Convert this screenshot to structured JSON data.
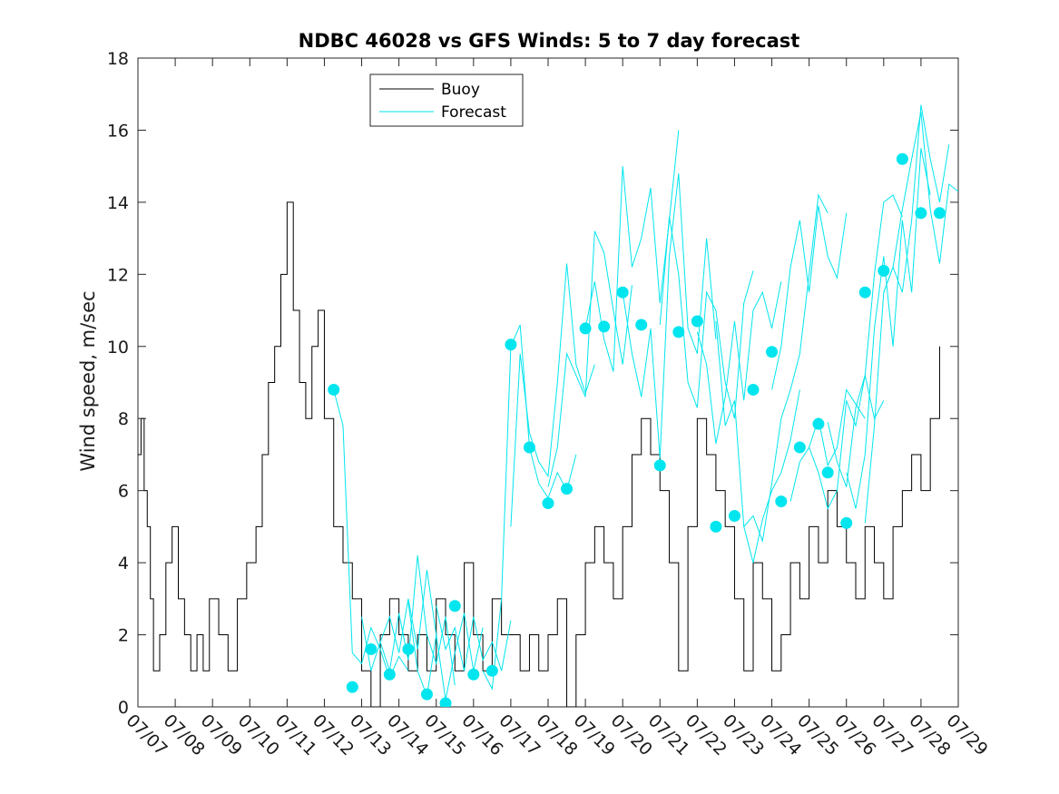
{
  "colors": {
    "buoy": "#000000",
    "forecast": "#00e5ee",
    "axis": "#262626",
    "background": "#ffffff"
  },
  "chart_data": {
    "type": "line",
    "title": "NDBC 46028 vs GFS Winds: 5 to 7 day forecast",
    "xlabel": "",
    "ylabel": "Wind speed, m/sec",
    "xlim": [
      "07/07",
      "07/29"
    ],
    "ylim": [
      0,
      18
    ],
    "x_ticks": [
      "07/07",
      "07/08",
      "07/09",
      "07/10",
      "07/11",
      "07/12",
      "07/13",
      "07/14",
      "07/15",
      "07/16",
      "07/17",
      "07/18",
      "07/19",
      "07/20",
      "07/21",
      "07/22",
      "07/23",
      "07/24",
      "07/25",
      "07/26",
      "07/27",
      "07/28",
      "07/29"
    ],
    "y_ticks": [
      "0",
      "2",
      "4",
      "6",
      "8",
      "10",
      "12",
      "14",
      "16",
      "18"
    ],
    "grid": false,
    "legend": {
      "placement": "top-center",
      "entries": [
        "Buoy",
        "Forecast"
      ]
    },
    "series": [
      {
        "name": "Buoy",
        "x": [
          "07/07 00:00",
          "07/07 02:00",
          "07/07 04:00",
          "07/07 06:00",
          "07/07 08:00",
          "07/07 10:00",
          "07/07 14:00",
          "07/07 18:00",
          "07/07 22:00",
          "07/08 02:00",
          "07/08 06:00",
          "07/08 10:00",
          "07/08 14:00",
          "07/08 18:00",
          "07/08 22:00",
          "07/09 04:00",
          "07/09 10:00",
          "07/09 16:00",
          "07/09 22:00",
          "07/10 04:00",
          "07/10 08:00",
          "07/10 12:00",
          "07/10 16:00",
          "07/10 20:00",
          "07/11 00:00",
          "07/11 04:00",
          "07/11 08:00",
          "07/11 12:00",
          "07/11 16:00",
          "07/11 20:00",
          "07/12 00:00",
          "07/12 06:00",
          "07/12 12:00",
          "07/12 18:00",
          "07/13 00:00",
          "07/13 06:00",
          "07/13 12:00",
          "07/13 18:00",
          "07/14 00:00",
          "07/14 06:00",
          "07/14 12:00",
          "07/14 18:00",
          "07/15 00:00",
          "07/15 06:00",
          "07/15 12:00",
          "07/15 18:00",
          "07/16 00:00",
          "07/16 06:00",
          "07/16 12:00",
          "07/16 18:00",
          "07/17 00:00",
          "07/17 06:00",
          "07/17 12:00",
          "07/17 18:00",
          "07/18 00:00",
          "07/18 06:00",
          "07/18 12:00",
          "07/18 18:00",
          "07/19 00:00",
          "07/19 06:00",
          "07/19 12:00",
          "07/19 18:00",
          "07/20 00:00",
          "07/20 06:00",
          "07/20 12:00",
          "07/20 18:00",
          "07/21 00:00",
          "07/21 06:00",
          "07/21 12:00",
          "07/21 18:00",
          "07/22 00:00",
          "07/22 06:00",
          "07/22 12:00",
          "07/22 18:00",
          "07/23 00:00",
          "07/23 06:00",
          "07/23 12:00",
          "07/23 18:00",
          "07/24 00:00",
          "07/24 06:00",
          "07/24 12:00",
          "07/24 18:00",
          "07/25 00:00",
          "07/25 06:00",
          "07/25 12:00",
          "07/25 18:00",
          "07/26 00:00",
          "07/26 06:00",
          "07/26 12:00",
          "07/26 18:00",
          "07/27 00:00",
          "07/27 06:00",
          "07/27 12:00",
          "07/27 18:00",
          "07/28 00:00",
          "07/28 06:00",
          "07/28 12:00"
        ],
        "y": [
          7,
          8,
          6,
          5,
          3,
          1,
          2,
          4,
          5,
          3,
          2,
          1,
          2,
          1,
          3,
          2,
          1,
          3,
          4,
          5,
          7,
          9,
          10,
          12,
          14,
          11,
          9,
          8,
          10,
          11,
          8,
          5,
          4,
          3,
          1,
          0,
          2,
          3,
          2,
          1,
          2,
          1,
          3,
          2,
          1,
          4,
          2,
          1,
          3,
          2,
          2,
          1,
          2,
          1,
          2,
          3,
          0,
          2,
          4,
          5,
          4,
          3,
          5,
          7,
          8,
          7,
          6,
          4,
          1,
          5,
          8,
          7,
          6,
          5,
          3,
          1,
          4,
          3,
          1,
          2,
          4,
          3,
          5,
          4,
          6,
          5,
          4,
          3,
          5,
          4,
          3,
          5,
          6,
          7,
          6,
          8,
          10
        ]
      }
    ],
    "forecast_runs": [
      {
        "x": [
          "07/12 06:00",
          "07/12 12:00",
          "07/12 18:00",
          "07/13 00:00",
          "07/13 06:00",
          "07/13 12:00",
          "07/13 18:00",
          "07/14 00:00",
          "07/14 06:00"
        ],
        "y": [
          8.8,
          7.8,
          1.5,
          1.2,
          2.2,
          1.6,
          0.8,
          1.4,
          1.0
        ]
      },
      {
        "x": [
          "07/13 00:00",
          "07/13 06:00",
          "07/13 12:00",
          "07/13 18:00",
          "07/14 00:00",
          "07/14 06:00",
          "07/14 12:00",
          "07/14 18:00",
          "07/15 00:00"
        ],
        "y": [
          2.5,
          1.0,
          1.8,
          2.5,
          1.5,
          3.0,
          1.6,
          3.8,
          2.0
        ]
      },
      {
        "x": [
          "07/13 12:00",
          "07/13 18:00",
          "07/14 00:00",
          "07/14 06:00",
          "07/14 12:00",
          "07/14 18:00",
          "07/15 00:00",
          "07/15 06:00",
          "07/15 12:00"
        ],
        "y": [
          1.8,
          1.0,
          2.6,
          1.3,
          4.2,
          2.0,
          1.2,
          2.5,
          0.6
        ]
      },
      {
        "x": [
          "07/14 06:00",
          "07/14 12:00",
          "07/14 18:00",
          "07/15 00:00",
          "07/15 06:00",
          "07/15 12:00",
          "07/15 18:00",
          "07/16 00:00",
          "07/16 06:00"
        ],
        "y": [
          2.9,
          1.0,
          0.3,
          2.0,
          0.2,
          1.5,
          2.6,
          1.0,
          2.2
        ]
      },
      {
        "x": [
          "07/15 00:00",
          "07/15 06:00",
          "07/15 12:00",
          "07/15 18:00",
          "07/16 00:00",
          "07/16 06:00",
          "07/16 12:00",
          "07/16 18:00",
          "07/17 00:00"
        ],
        "y": [
          2.8,
          1.6,
          2.2,
          1.0,
          2.5,
          1.3,
          1.8,
          1.0,
          2.4
        ]
      },
      {
        "x": [
          "07/16 06:00",
          "07/16 12:00",
          "07/16 18:00",
          "07/17 00:00",
          "07/17 06:00",
          "07/17 12:00",
          "07/17 18:00",
          "07/18 00:00",
          "07/18 06:00",
          "07/18 12:00",
          "07/18 18:00"
        ],
        "y": [
          1.0,
          0.5,
          3.0,
          10.0,
          10.6,
          7.2,
          6.2,
          5.8,
          6.5,
          6.0,
          7.0
        ]
      },
      {
        "x": [
          "07/17 00:00",
          "07/17 06:00",
          "07/17 12:00",
          "07/17 18:00",
          "07/18 00:00",
          "07/18 06:00",
          "07/18 12:00",
          "07/18 18:00",
          "07/19 00:00",
          "07/19 06:00"
        ],
        "y": [
          5.0,
          9.8,
          7.6,
          6.8,
          6.4,
          9.0,
          12.3,
          9.5,
          8.7,
          9.5
        ]
      },
      {
        "x": [
          "07/18 00:00",
          "07/18 06:00",
          "07/18 12:00",
          "07/18 18:00",
          "07/19 00:00",
          "07/19 06:00",
          "07/19 12:00",
          "07/19 18:00",
          "07/20 00:00",
          "07/20 06:00"
        ],
        "y": [
          6.1,
          7.2,
          9.8,
          9.2,
          8.6,
          13.2,
          12.6,
          11.0,
          9.5,
          11.7
        ]
      },
      {
        "x": [
          "07/19 00:00",
          "07/19 06:00",
          "07/19 12:00",
          "07/19 18:00",
          "07/20 00:00",
          "07/20 06:00",
          "07/20 12:00",
          "07/20 18:00",
          "07/21 00:00",
          "07/21 06:00",
          "07/21 12:00"
        ],
        "y": [
          10.5,
          11.8,
          10.2,
          9.3,
          15.0,
          12.2,
          13.0,
          14.4,
          11.2,
          13.5,
          16.0
        ]
      },
      {
        "x": [
          "07/20 00:00",
          "07/20 06:00",
          "07/20 12:00",
          "07/20 18:00",
          "07/21 00:00",
          "07/21 06:00",
          "07/21 12:00",
          "07/21 18:00",
          "07/22 00:00",
          "07/22 06:00",
          "07/22 12:00"
        ],
        "y": [
          11.5,
          9.8,
          8.6,
          10.5,
          6.9,
          12.5,
          14.8,
          10.5,
          9.8,
          13.0,
          10.2
        ]
      },
      {
        "x": [
          "07/21 00:00",
          "07/21 06:00",
          "07/21 12:00",
          "07/21 18:00",
          "07/22 00:00",
          "07/22 06:00",
          "07/22 12:00",
          "07/22 18:00",
          "07/23 00:00",
          "07/23 06:00",
          "07/23 12:00"
        ],
        "y": [
          10.6,
          13.6,
          12.0,
          9.0,
          8.3,
          11.5,
          11.0,
          9.0,
          8.0,
          11.2,
          12.1
        ]
      },
      {
        "x": [
          "07/22 00:00",
          "07/22 06:00",
          "07/22 12:00",
          "07/22 18:00",
          "07/23 00:00",
          "07/23 06:00",
          "07/23 12:00",
          "07/23 18:00",
          "07/24 00:00",
          "07/24 06:00"
        ],
        "y": [
          10.4,
          9.5,
          7.3,
          8.6,
          10.7,
          8.5,
          11.0,
          11.5,
          10.5,
          11.8
        ]
      },
      {
        "x": [
          "07/22 12:00",
          "07/22 18:00",
          "07/23 00:00",
          "07/23 06:00",
          "07/23 12:00",
          "07/23 18:00",
          "07/24 00:00",
          "07/24 06:00",
          "07/24 12:00",
          "07/24 18:00"
        ],
        "y": [
          10.7,
          7.8,
          8.5,
          5.0,
          4.0,
          5.2,
          6.0,
          6.5,
          7.4,
          8.8
        ]
      },
      {
        "x": [
          "07/23 06:00",
          "07/23 12:00",
          "07/23 18:00",
          "07/24 00:00",
          "07/24 06:00",
          "07/24 12:00",
          "07/24 18:00",
          "07/25 00:00",
          "07/25 06:00",
          "07/25 12:00"
        ],
        "y": [
          5.0,
          5.3,
          4.6,
          6.2,
          8.0,
          8.8,
          9.8,
          12.0,
          14.2,
          13.7
        ]
      },
      {
        "x": [
          "07/24 00:00",
          "07/24 06:00",
          "07/24 12:00",
          "07/24 18:00",
          "07/25 00:00",
          "07/25 06:00",
          "07/25 12:00",
          "07/25 18:00",
          "07/26 00:00"
        ],
        "y": [
          8.8,
          10.0,
          12.2,
          13.5,
          11.5,
          13.9,
          12.5,
          11.9,
          13.7
        ]
      },
      {
        "x": [
          "07/24 12:00",
          "07/24 18:00",
          "07/25 00:00",
          "07/25 06:00",
          "07/25 12:00",
          "07/25 18:00",
          "07/26 00:00",
          "07/26 06:00",
          "07/26 12:00"
        ],
        "y": [
          5.7,
          6.8,
          7.2,
          8.0,
          6.7,
          7.2,
          8.8,
          8.4,
          8.0
        ]
      },
      {
        "x": [
          "07/25 00:00",
          "07/25 06:00",
          "07/25 12:00",
          "07/25 18:00",
          "07/26 00:00",
          "07/26 06:00",
          "07/26 12:00",
          "07/26 18:00",
          "07/27 00:00"
        ],
        "y": [
          7.2,
          6.5,
          5.5,
          6.0,
          8.5,
          7.8,
          9.2,
          8.0,
          8.5
        ]
      },
      {
        "x": [
          "07/25 12:00",
          "07/25 18:00",
          "07/26 00:00",
          "07/26 06:00",
          "07/26 12:00",
          "07/26 18:00",
          "07/27 00:00",
          "07/27 06:00",
          "07/27 12:00"
        ],
        "y": [
          7.9,
          6.8,
          6.1,
          8.3,
          9.2,
          12.0,
          14.0,
          14.2,
          13.6
        ]
      },
      {
        "x": [
          "07/26 00:00",
          "07/26 06:00",
          "07/26 12:00",
          "07/26 18:00",
          "07/27 00:00",
          "07/27 06:00",
          "07/27 12:00",
          "07/27 18:00",
          "07/28 00:00",
          "07/28 06:00"
        ],
        "y": [
          6.5,
          5.5,
          7.0,
          10.5,
          12.5,
          10.0,
          13.5,
          11.5,
          15.5,
          14.2
        ]
      },
      {
        "x": [
          "07/26 12:00",
          "07/26 18:00",
          "07/27 00:00",
          "07/27 06:00",
          "07/27 12:00",
          "07/27 18:00",
          "07/28 00:00",
          "07/28 06:00",
          "07/28 12:00",
          "07/28 18:00"
        ],
        "y": [
          5.1,
          7.8,
          11.5,
          12.2,
          11.5,
          13.5,
          16.7,
          15.2,
          14.0,
          15.6
        ]
      },
      {
        "x": [
          "07/27 00:00",
          "07/27 06:00",
          "07/27 12:00",
          "07/27 18:00",
          "07/28 00:00",
          "07/28 06:00",
          "07/28 12:00",
          "07/28 18:00",
          "07/29 00:00"
        ],
        "y": [
          11.5,
          12.2,
          13.8,
          15.2,
          16.5,
          13.8,
          12.3,
          14.5,
          14.3
        ]
      }
    ],
    "forecast_markers": {
      "x": [
        "07/12 06:00",
        "07/12 18:00",
        "07/13 06:00",
        "07/13 18:00",
        "07/14 06:00",
        "07/14 18:00",
        "07/15 06:00",
        "07/15 12:00",
        "07/16 00:00",
        "07/16 12:00",
        "07/17 00:00",
        "07/17 12:00",
        "07/18 00:00",
        "07/18 12:00",
        "07/19 00:00",
        "07/19 12:00",
        "07/20 00:00",
        "07/20 12:00",
        "07/21 00:00",
        "07/21 12:00",
        "07/22 00:00",
        "07/22 12:00",
        "07/23 00:00",
        "07/23 12:00",
        "07/24 00:00",
        "07/24 06:00",
        "07/24 18:00",
        "07/25 06:00",
        "07/25 12:00",
        "07/26 00:00",
        "07/26 12:00",
        "07/27 00:00",
        "07/27 12:00",
        "07/28 00:00",
        "07/28 12:00"
      ],
      "y": [
        8.8,
        0.55,
        1.6,
        0.9,
        1.6,
        0.35,
        0.1,
        2.8,
        0.9,
        1.0,
        10.05,
        7.2,
        5.65,
        6.05,
        10.5,
        10.55,
        11.5,
        10.6,
        6.7,
        10.4,
        10.7,
        5.0,
        5.3,
        8.8,
        9.85,
        5.7,
        7.2,
        7.85,
        6.5,
        5.1,
        11.5,
        12.1,
        15.2,
        13.7,
        13.7
      ]
    }
  }
}
